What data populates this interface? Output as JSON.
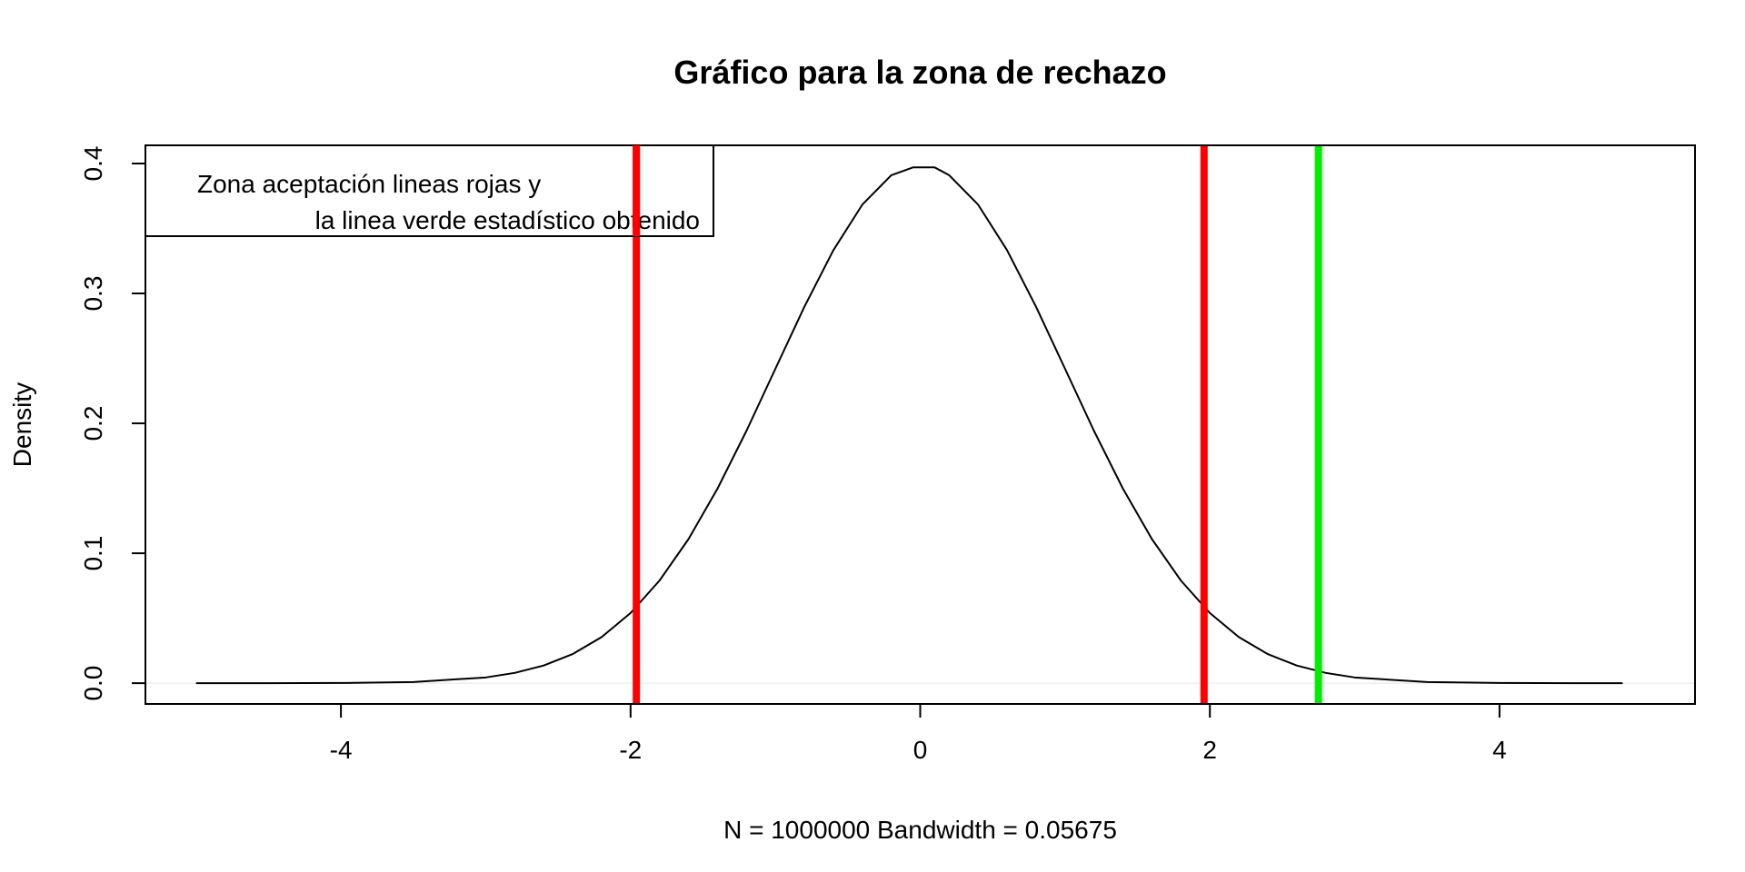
{
  "chart_data": {
    "type": "line",
    "title": "Gráfico para la zona de rechazo",
    "xlabel": "N = 1000000   Bandwidth = 0.05675",
    "ylabel": "Density",
    "xlim": [
      -5.35,
      5.35
    ],
    "ylim": [
      -0.016,
      0.414
    ],
    "x_ticks": [
      -4,
      -2,
      0,
      2,
      4
    ],
    "x_tick_labels": [
      "-4",
      "-2",
      "0",
      "2",
      "4"
    ],
    "y_ticks": [
      0.0,
      0.1,
      0.2,
      0.3,
      0.4
    ],
    "y_tick_labels": [
      "0.0",
      "0.1",
      "0.2",
      "0.3",
      "0.4"
    ],
    "grid": false,
    "legend": {
      "placement": "top-left",
      "lines": [
        "Zona aceptación lineas rojas y",
        "la linea verde estadístico obtenido"
      ]
    },
    "series": [
      {
        "color": "#000000",
        "x": [
          -5.0,
          -4.5,
          -4.0,
          -3.5,
          -3.0,
          -2.8,
          -2.6,
          -2.4,
          -2.2,
          -2.0,
          -1.8,
          -1.6,
          -1.4,
          -1.2,
          -1.0,
          -0.8,
          -0.6,
          -0.4,
          -0.2,
          -0.05,
          0.0,
          0.1,
          0.2,
          0.4,
          0.6,
          0.8,
          1.0,
          1.2,
          1.4,
          1.6,
          1.8,
          2.0,
          2.2,
          2.4,
          2.6,
          2.8,
          3.0,
          3.5,
          4.0,
          4.5,
          4.85
        ],
        "y": [
          0.0,
          2e-05,
          0.00013,
          0.00087,
          0.0044,
          0.0079,
          0.0136,
          0.0224,
          0.0355,
          0.054,
          0.079,
          0.1109,
          0.1497,
          0.1942,
          0.242,
          0.2897,
          0.3332,
          0.3683,
          0.391,
          0.397,
          0.397,
          0.397,
          0.391,
          0.3683,
          0.3332,
          0.2897,
          0.242,
          0.1942,
          0.1497,
          0.1109,
          0.079,
          0.054,
          0.0355,
          0.0224,
          0.0136,
          0.0079,
          0.0044,
          0.00087,
          0.00013,
          2e-05,
          0.0
        ]
      }
    ],
    "vertical_lines": [
      {
        "x": -1.96,
        "color": "#ff0000"
      },
      {
        "x": 1.96,
        "color": "#ff0000"
      },
      {
        "x": 2.75,
        "color": "#00ee00"
      }
    ],
    "zero_line_color": "#e5e5e5"
  }
}
